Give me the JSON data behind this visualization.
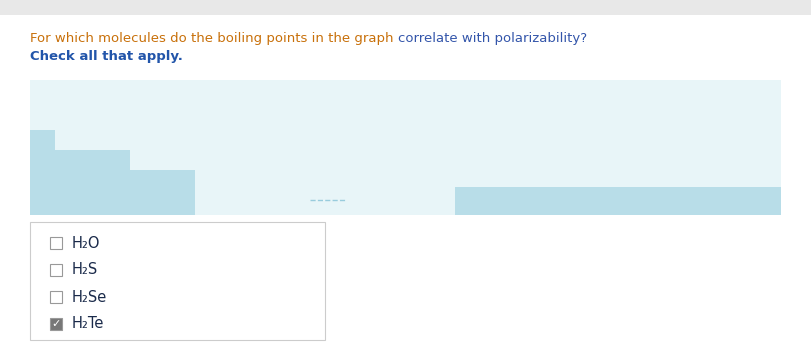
{
  "q_part1": "For which molecules do the boiling points in the graph ",
  "q_part2": "correlate with polarizability?",
  "subtext": "Check all that apply.",
  "options": [
    "H₂O",
    "H₂S",
    "H₂Se",
    "H₂Te"
  ],
  "checked": [
    false,
    false,
    false,
    true
  ],
  "bg_color": "#f2f2f2",
  "page_bg": "#ffffff",
  "q_color1": "#c8700a",
  "q_color2": "#3355aa",
  "subtext_color": "#2255aa",
  "option_color": "#1a2a4a",
  "box_bg": "#ffffff",
  "graph_bg_light": "#e8f5f8",
  "graph_shape_color": "#b8dde8",
  "checkbox_border": "#999999",
  "checkbox_checked_bg": "#777777",
  "checkmark_color": "#ffffff"
}
